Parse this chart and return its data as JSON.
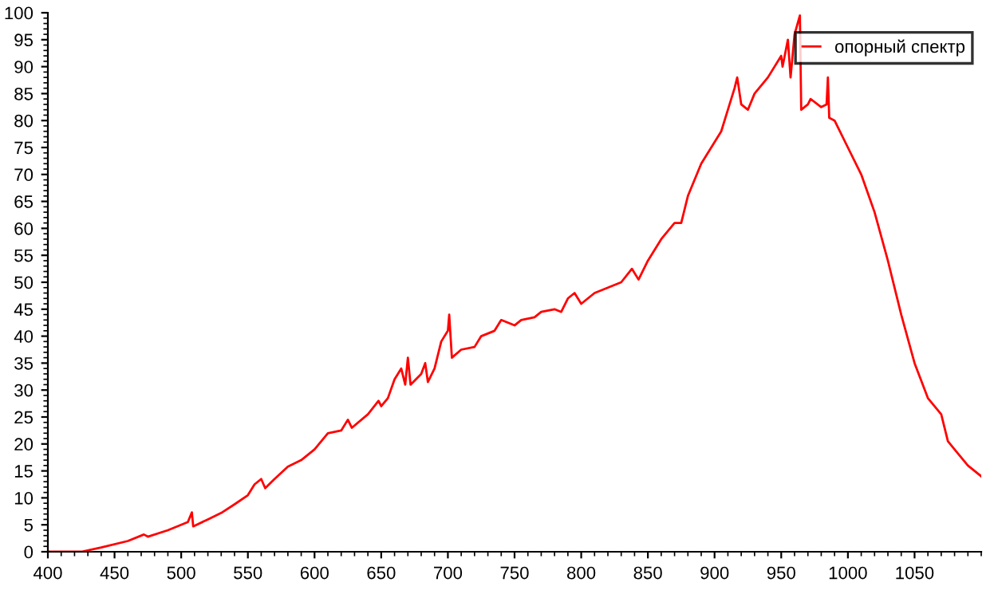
{
  "chart_data": {
    "type": "line",
    "xlim": [
      400,
      1100
    ],
    "ylim": [
      0,
      100
    ],
    "xticks": [
      400,
      450,
      500,
      550,
      600,
      650,
      700,
      750,
      800,
      850,
      900,
      950,
      1000,
      1050
    ],
    "yticks": [
      0,
      5,
      10,
      15,
      20,
      25,
      30,
      35,
      40,
      45,
      50,
      55,
      60,
      65,
      70,
      75,
      80,
      85,
      90,
      95,
      100
    ],
    "grid": false,
    "legend": "top right",
    "marker": "none",
    "line_style": "solid",
    "series": [
      {
        "name": "опорный спектр",
        "color": "#ff0000",
        "x": [
          400,
          425,
          440,
          460,
          472,
          475,
          490,
          505,
          508,
          509,
          520,
          530,
          540,
          550,
          555,
          560,
          563,
          570,
          580,
          590,
          600,
          610,
          620,
          625,
          628,
          640,
          648,
          650,
          655,
          660,
          665,
          668,
          670,
          672,
          680,
          683,
          685,
          690,
          695,
          700,
          701,
          703,
          710,
          720,
          725,
          735,
          740,
          750,
          755,
          765,
          770,
          780,
          785,
          790,
          795,
          800,
          810,
          820,
          830,
          838,
          843,
          850,
          860,
          870,
          875,
          880,
          890,
          900,
          905,
          910,
          915,
          917,
          920,
          925,
          930,
          940,
          950,
          951,
          955,
          957,
          960,
          964,
          965,
          970,
          972,
          980,
          984,
          985,
          986,
          990,
          1000,
          1010,
          1020,
          1030,
          1040,
          1050,
          1060,
          1070,
          1075,
          1080,
          1090,
          1100
        ],
        "values": [
          0,
          0,
          0.8,
          2,
          3.2,
          2.8,
          4,
          5.5,
          7.3,
          4.7,
          6,
          7.2,
          8.8,
          10.5,
          12.5,
          13.5,
          11.8,
          13.5,
          15.8,
          17,
          19,
          22,
          22.5,
          24.5,
          23,
          25.5,
          28,
          27,
          28.5,
          32,
          34,
          31,
          36,
          31,
          33,
          35,
          31.5,
          34,
          39,
          41,
          44,
          36,
          37.5,
          38,
          40,
          41,
          43,
          42,
          43,
          43.5,
          44.5,
          45,
          44.5,
          47,
          48,
          46,
          48,
          49,
          50,
          52.5,
          50.5,
          54,
          58,
          61,
          61,
          66,
          72,
          76,
          78,
          82,
          86,
          88,
          83,
          82,
          85,
          88,
          92,
          90,
          95,
          88,
          96,
          99.5,
          82,
          83,
          84,
          82.5,
          83,
          88,
          80.5,
          80,
          75,
          70,
          63,
          54,
          44,
          35,
          28.5,
          25.5,
          20.5,
          19,
          16,
          14
        ]
      }
    ]
  }
}
